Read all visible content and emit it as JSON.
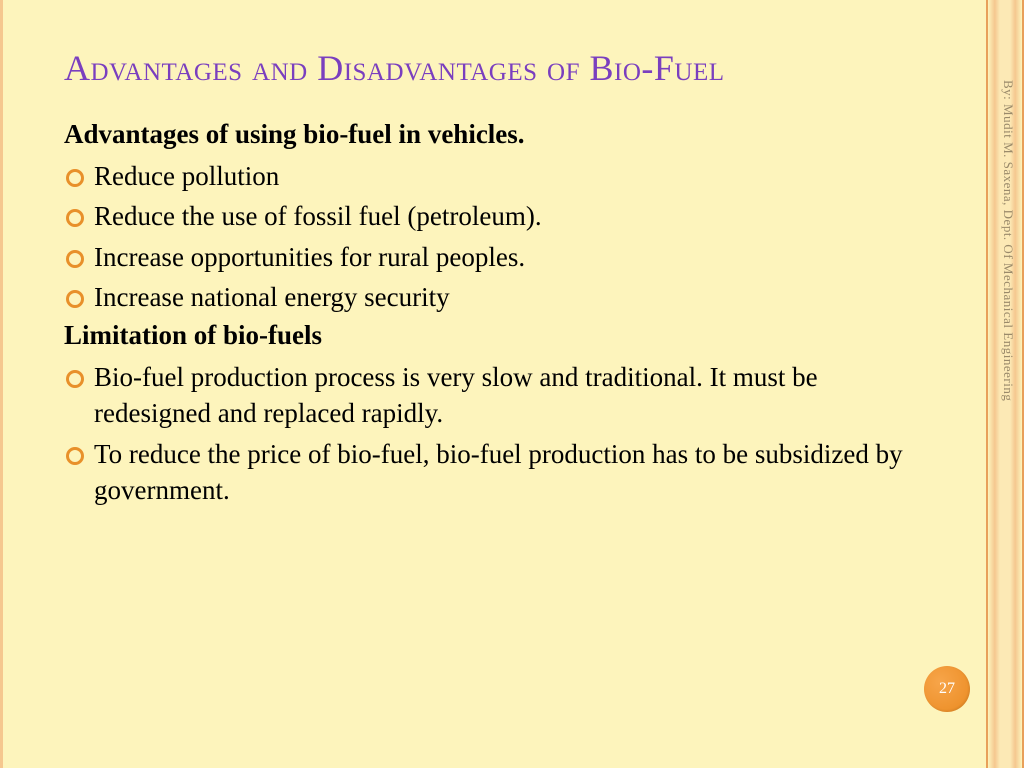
{
  "slide": {
    "title": "Advantages and Disadvantages of Bio-Fuel",
    "subhead_advantages": "Advantages of using bio-fuel in vehicles.",
    "advantages": [
      "Reduce pollution",
      "Reduce the use of fossil fuel (petroleum).",
      "Increase opportunities for rural peoples.",
      "Increase national energy security"
    ],
    "subhead_limitations": "Limitation of bio-fuels",
    "limitations": [
      "Bio-fuel production process is very slow and traditional. It must be redesigned and replaced rapidly.",
      "To reduce the price of bio-fuel, bio-fuel production has to be subsidized by government."
    ],
    "page_number": "27",
    "attribution": "By: Mudit M. Saxena, Dept. Of Mechanical Engineering"
  },
  "style": {
    "background_color": "#fdf4bc",
    "title_color": "#7a3fbf",
    "bullet_color": "#e8902a",
    "badge_color": "#ea8a20",
    "text_color": "#000000",
    "attribution_color": "#9a8a6a",
    "title_fontsize": 36,
    "body_fontsize": 27,
    "font_family": "Georgia, serif"
  }
}
